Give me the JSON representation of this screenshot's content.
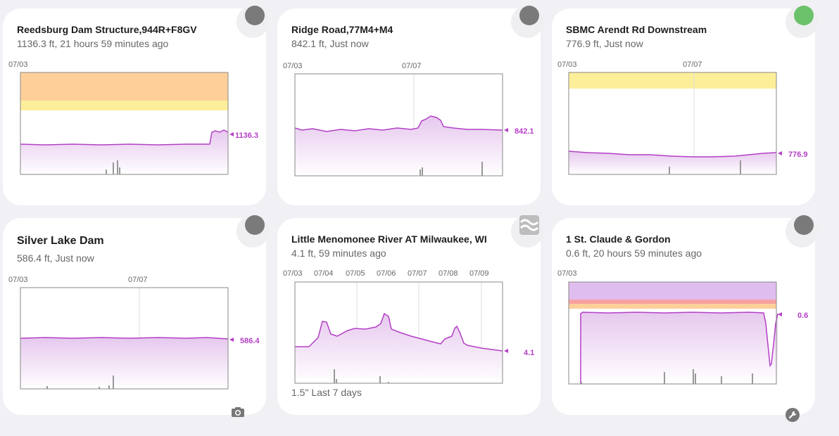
{
  "cards": [
    {
      "title": "Reedsburg Dam Structure,944R+F8GV",
      "subtitle": "1136.3 ft, 21 hours 59 minutes ago",
      "status_color": "#7a7a7a",
      "status_icon": "status-dot-icon",
      "date_labels": [
        "07/03"
      ],
      "current_label": "1136.3"
    },
    {
      "title": "Ridge Road,77M4+M4",
      "subtitle": "842.1 ft, Just now",
      "status_color": "#7a7a7a",
      "status_icon": "status-dot-icon",
      "date_labels": [
        "07/03",
        "07/07"
      ],
      "current_label": "842.1"
    },
    {
      "title": "SBMC Arendt Rd Downstream",
      "subtitle": "776.9 ft, Just now",
      "status_color": "#6cc26a",
      "status_icon": "status-dot-icon",
      "date_labels": [
        "07/03",
        "07/07"
      ],
      "current_label": "776.9"
    },
    {
      "title": "Silver Lake Dam",
      "subtitle": "586.4 ft, Just now",
      "status_color": "#7a7a7a",
      "status_icon": "status-dot-icon",
      "date_labels": [
        "07/03",
        "07/07"
      ],
      "current_label": "586.4",
      "footer_icon": "camera-icon"
    },
    {
      "title": "Little Menomonee River AT Milwaukee, WI",
      "subtitle": "4.1 ft, 59 minutes ago",
      "status_icon": "water-waves-icon",
      "date_labels": [
        "07/03",
        "07/04",
        "07/05",
        "07/06",
        "07/07",
        "07/08",
        "07/09"
      ],
      "current_label": "4.1",
      "footer": "1.5\" Last 7 days"
    },
    {
      "title": "1 St. Claude & Gordon",
      "subtitle": "0.6 ft, 20 hours 59 minutes ago",
      "status_color": "#7a7a7a",
      "status_icon": "status-dot-icon",
      "date_labels": [
        "07/03"
      ],
      "current_label": "0.6",
      "footer_icon": "wrench-icon"
    }
  ],
  "colors": {
    "line": "#b43fc6",
    "fill_top": "#e6c8ee",
    "orange_band": "#fdd09a",
    "yellow_band": "#fdee9a",
    "purple_band": "#e0bdef",
    "red_band": "#f7a0a0"
  }
}
